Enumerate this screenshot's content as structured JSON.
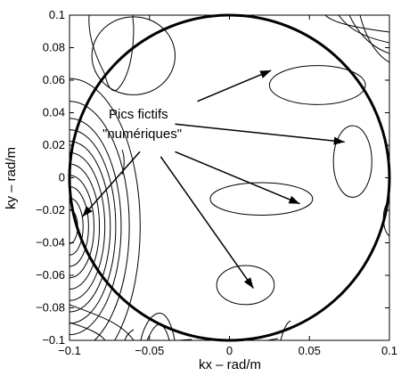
{
  "chart_data": {
    "type": "contour",
    "xlabel": "kx – rad/m",
    "ylabel": "ky – rad/m",
    "xlim": [
      -0.1,
      0.1
    ],
    "ylim": [
      -0.1,
      0.1
    ],
    "xticks": [
      -0.1,
      -0.05,
      0,
      0.05,
      0.1
    ],
    "xtick_labels": [
      "−0.1",
      "−0.05",
      "0",
      "0.05",
      "0.1"
    ],
    "yticks": [
      0.1,
      0.08,
      0.06,
      0.04,
      0.02,
      0,
      -0.02,
      -0.04,
      -0.06,
      -0.08,
      -0.1
    ],
    "ytick_labels": [
      "0.1",
      "0.08",
      "0.06",
      "0.04",
      "0.02",
      "0",
      "−0.02",
      "−0.04",
      "−0.06",
      "−0.08",
      "−0.1"
    ],
    "grid": false,
    "circle": {
      "center": [
        0,
        0
      ],
      "radius": 0.1
    },
    "main_peak": {
      "center": [
        -0.1,
        -0.03
      ],
      "ring_radii": [
        0.006,
        0.01,
        0.014,
        0.018,
        0.022,
        0.026,
        0.03,
        0.034,
        0.038,
        0.044,
        0.052
      ]
    },
    "annotation": {
      "lines": [
        "Pics fictifs",
        "\"numériques\""
      ],
      "position": [
        -0.075,
        0.042
      ],
      "arrows": [
        {
          "from": [
            -0.02,
            0.047
          ],
          "to": [
            0.026,
            0.066
          ]
        },
        {
          "from": [
            -0.034,
            0.033
          ],
          "to": [
            0.072,
            0.022
          ]
        },
        {
          "from": [
            -0.056,
            0.016
          ],
          "to": [
            -0.092,
            -0.024
          ]
        },
        {
          "from": [
            -0.034,
            0.016
          ],
          "to": [
            0.044,
            -0.016
          ]
        },
        {
          "from": [
            -0.043,
            0.013
          ],
          "to": [
            0.015,
            -0.068
          ]
        }
      ]
    },
    "fictitious_peaks": [
      {
        "center": [
          0.01,
          -0.066
        ],
        "rx": 0.018,
        "ry": 0.012
      },
      {
        "center": [
          0.02,
          -0.013
        ],
        "rx": 0.032,
        "ry": 0.01
      },
      {
        "center": [
          0.055,
          0.057
        ],
        "rx": 0.03,
        "ry": 0.012
      },
      {
        "center": [
          0.077,
          0.01
        ],
        "rx": 0.012,
        "ry": 0.022
      },
      {
        "center": [
          -0.06,
          0.075
        ],
        "rx": 0.026,
        "ry": 0.024
      }
    ]
  }
}
